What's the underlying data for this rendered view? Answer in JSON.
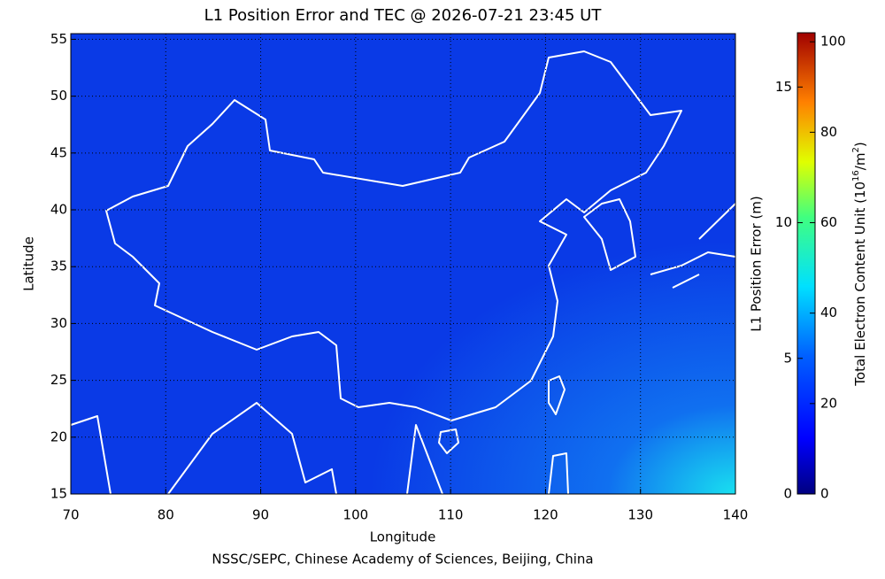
{
  "chart_data": {
    "type": "map",
    "title": "L1 Position Error and TEC @ 2026-07-21 23:45 UT",
    "x_label": "Longitude",
    "y_label": "Latitude",
    "footer": "NSSC/SEPC, Chinese Academy of Sciences, Beijing, China",
    "xlim": [
      70,
      140
    ],
    "ylim": [
      15,
      55.5
    ],
    "xticks": [
      70,
      80,
      90,
      100,
      110,
      120,
      130,
      140
    ],
    "yticks": [
      15,
      20,
      25,
      30,
      35,
      40,
      45,
      50,
      55
    ],
    "grid": true,
    "colorbar": {
      "left_label": "L1 Position Error (m)",
      "left_lim": [
        0,
        17
      ],
      "left_ticks": [
        0,
        5,
        10,
        15
      ],
      "right_label_parts": [
        "Total Electron Content Unit (10",
        "16",
        "/m",
        "2",
        ")"
      ],
      "right_lim": [
        0,
        102
      ],
      "right_ticks": [
        0,
        20,
        40,
        60,
        80,
        100
      ]
    }
  }
}
